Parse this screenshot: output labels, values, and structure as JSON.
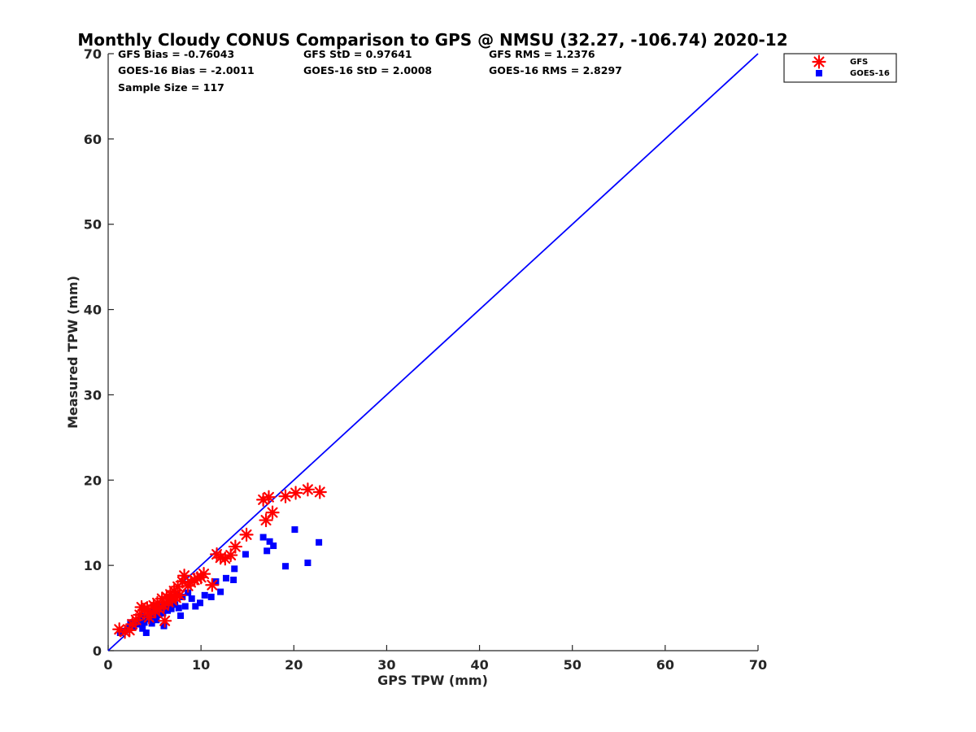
{
  "chart_data": {
    "type": "scatter",
    "title": "Monthly Cloudy CONUS Comparison to GPS @ NMSU (32.27, -106.74) 2020-12",
    "xlabel": "GPS TPW (mm)",
    "ylabel": "Measured TPW (mm)",
    "xlim": [
      0,
      70
    ],
    "ylim": [
      0,
      70
    ],
    "xticks": [
      "0",
      "10",
      "20",
      "30",
      "40",
      "50",
      "60",
      "70"
    ],
    "yticks": [
      "0",
      "10",
      "20",
      "30",
      "40",
      "50",
      "60",
      "70"
    ],
    "grid": false,
    "legend_position": "outside top-right",
    "reference_line": {
      "name": "1:1 line",
      "x": [
        0,
        70
      ],
      "y": [
        0,
        70
      ],
      "color": "#0000ff"
    },
    "stats": [
      [
        "GFS Bias = -0.76043",
        "GFS StD = 0.97641",
        "GFS RMS = 1.2376"
      ],
      [
        "GOES-16 Bias = -2.0011",
        "GOES-16 StD = 2.0008",
        "GOES-16 RMS = 2.8297"
      ],
      [
        "Sample Size = 117"
      ]
    ],
    "series": [
      {
        "name": "GFS",
        "marker": "asterisk",
        "color": "#ff0000",
        "points": [
          [
            1.2,
            2.5
          ],
          [
            1.8,
            2.2
          ],
          [
            2.3,
            2.4
          ],
          [
            2.6,
            3.1
          ],
          [
            3.0,
            3.6
          ],
          [
            3.4,
            4.2
          ],
          [
            3.6,
            5.1
          ],
          [
            3.9,
            4.8
          ],
          [
            4.2,
            5.0
          ],
          [
            4.4,
            3.9
          ],
          [
            4.6,
            4.5
          ],
          [
            4.9,
            5.3
          ],
          [
            5.1,
            4.6
          ],
          [
            5.3,
            5.6
          ],
          [
            5.5,
            4.9
          ],
          [
            5.8,
            6.1
          ],
          [
            6.0,
            5.3
          ],
          [
            6.1,
            3.5
          ],
          [
            6.3,
            6.3
          ],
          [
            6.5,
            5.7
          ],
          [
            6.7,
            6.6
          ],
          [
            6.9,
            5.9
          ],
          [
            7.1,
            7.0
          ],
          [
            7.3,
            6.2
          ],
          [
            7.5,
            7.5
          ],
          [
            7.7,
            6.5
          ],
          [
            8.0,
            8.1
          ],
          [
            8.2,
            8.8
          ],
          [
            8.6,
            7.6
          ],
          [
            8.9,
            8.0
          ],
          [
            9.3,
            8.3
          ],
          [
            9.6,
            8.5
          ],
          [
            10.0,
            8.6
          ],
          [
            10.3,
            9.0
          ],
          [
            11.2,
            7.7
          ],
          [
            11.7,
            11.3
          ],
          [
            12.1,
            10.9
          ],
          [
            12.6,
            10.8
          ],
          [
            13.2,
            11.2
          ],
          [
            13.7,
            12.2
          ],
          [
            14.9,
            13.6
          ],
          [
            16.7,
            17.7
          ],
          [
            17.0,
            15.3
          ],
          [
            17.3,
            18.0
          ],
          [
            17.7,
            16.2
          ],
          [
            19.1,
            18.1
          ],
          [
            20.2,
            18.5
          ],
          [
            21.5,
            18.9
          ],
          [
            22.8,
            18.6
          ]
        ]
      },
      {
        "name": "GOES-16",
        "marker": "square",
        "color": "#0000ff",
        "points": [
          [
            1.3,
            2.1
          ],
          [
            1.7,
            2.3
          ],
          [
            2.2,
            2.6
          ],
          [
            2.4,
            3.3
          ],
          [
            2.7,
            2.8
          ],
          [
            3.1,
            3.5
          ],
          [
            3.3,
            3.1
          ],
          [
            3.5,
            4.0
          ],
          [
            3.7,
            2.6
          ],
          [
            3.9,
            3.3
          ],
          [
            4.1,
            2.1
          ],
          [
            4.3,
            3.7
          ],
          [
            4.5,
            4.3
          ],
          [
            4.7,
            3.2
          ],
          [
            4.9,
            4.0
          ],
          [
            5.0,
            4.6
          ],
          [
            5.2,
            3.6
          ],
          [
            5.4,
            4.8
          ],
          [
            5.5,
            4.2
          ],
          [
            5.7,
            5.1
          ],
          [
            5.9,
            4.4
          ],
          [
            6.0,
            2.9
          ],
          [
            6.2,
            5.3
          ],
          [
            6.4,
            4.7
          ],
          [
            6.6,
            5.6
          ],
          [
            6.8,
            4.9
          ],
          [
            7.0,
            6.1
          ],
          [
            7.2,
            5.4
          ],
          [
            7.4,
            6.5
          ],
          [
            7.6,
            5.0
          ],
          [
            7.8,
            4.1
          ],
          [
            8.0,
            6.3
          ],
          [
            8.3,
            5.2
          ],
          [
            8.6,
            6.8
          ],
          [
            9.0,
            6.1
          ],
          [
            9.4,
            5.2
          ],
          [
            9.9,
            5.6
          ],
          [
            10.4,
            6.5
          ],
          [
            11.1,
            6.3
          ],
          [
            11.6,
            8.1
          ],
          [
            12.1,
            6.9
          ],
          [
            12.7,
            8.5
          ],
          [
            13.5,
            8.3
          ],
          [
            13.6,
            9.6
          ],
          [
            14.8,
            11.3
          ],
          [
            16.7,
            13.3
          ],
          [
            17.1,
            11.7
          ],
          [
            17.4,
            12.8
          ],
          [
            17.8,
            12.3
          ],
          [
            19.1,
            9.9
          ],
          [
            20.1,
            14.2
          ],
          [
            21.5,
            10.3
          ],
          [
            22.7,
            12.7
          ]
        ]
      }
    ]
  }
}
